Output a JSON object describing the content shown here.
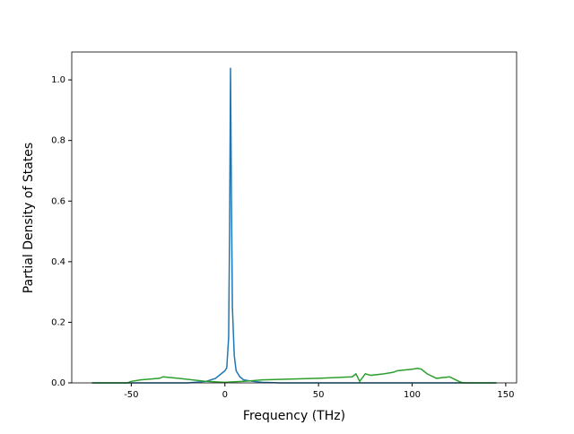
{
  "chart_data": {
    "type": "line",
    "x_label": "Frequency (THz)",
    "y_label": "Partial Density of States",
    "xlim": [
      -81.8,
      155.8
    ],
    "ylim": [
      0,
      1.092
    ],
    "xticks": [
      -50,
      0,
      50,
      100,
      150
    ],
    "yticks": [
      {
        "value": 0,
        "label": "0.0"
      },
      {
        "value": 0.2,
        "label": "0.2"
      },
      {
        "value": 0.4,
        "label": "0.4"
      },
      {
        "value": 0.6,
        "label": "0.6"
      },
      {
        "value": 0.8,
        "label": "0.8"
      },
      {
        "value": 1.0,
        "label": "1.0"
      }
    ],
    "series": [
      {
        "color": "#1f77b4",
        "x": [
          -71,
          -20,
          -10,
          -5,
          -2,
          0,
          1,
          2,
          2.5,
          3,
          3.5,
          4,
          5,
          6,
          8,
          10,
          15,
          20,
          30,
          145
        ],
        "values": [
          0,
          0,
          0.005,
          0.015,
          0.03,
          0.04,
          0.05,
          0.15,
          0.5,
          1.04,
          0.6,
          0.25,
          0.09,
          0.04,
          0.02,
          0.01,
          0.005,
          0.002,
          0,
          0
        ]
      },
      {
        "color": "#2ca02c",
        "x": [
          -71,
          -52,
          -50,
          -45,
          -35,
          -33,
          -25,
          -10,
          0,
          10,
          20,
          50,
          68,
          70,
          72,
          75,
          78,
          85,
          90,
          92,
          100,
          103,
          105,
          108,
          113,
          120,
          125,
          127,
          145
        ],
        "values": [
          0,
          0,
          0.005,
          0.01,
          0.015,
          0.02,
          0.015,
          0.005,
          0.002,
          0.005,
          0.01,
          0.015,
          0.02,
          0.03,
          0.005,
          0.03,
          0.025,
          0.03,
          0.035,
          0.04,
          0.045,
          0.048,
          0.045,
          0.03,
          0.015,
          0.02,
          0.005,
          0,
          0
        ]
      }
    ]
  }
}
